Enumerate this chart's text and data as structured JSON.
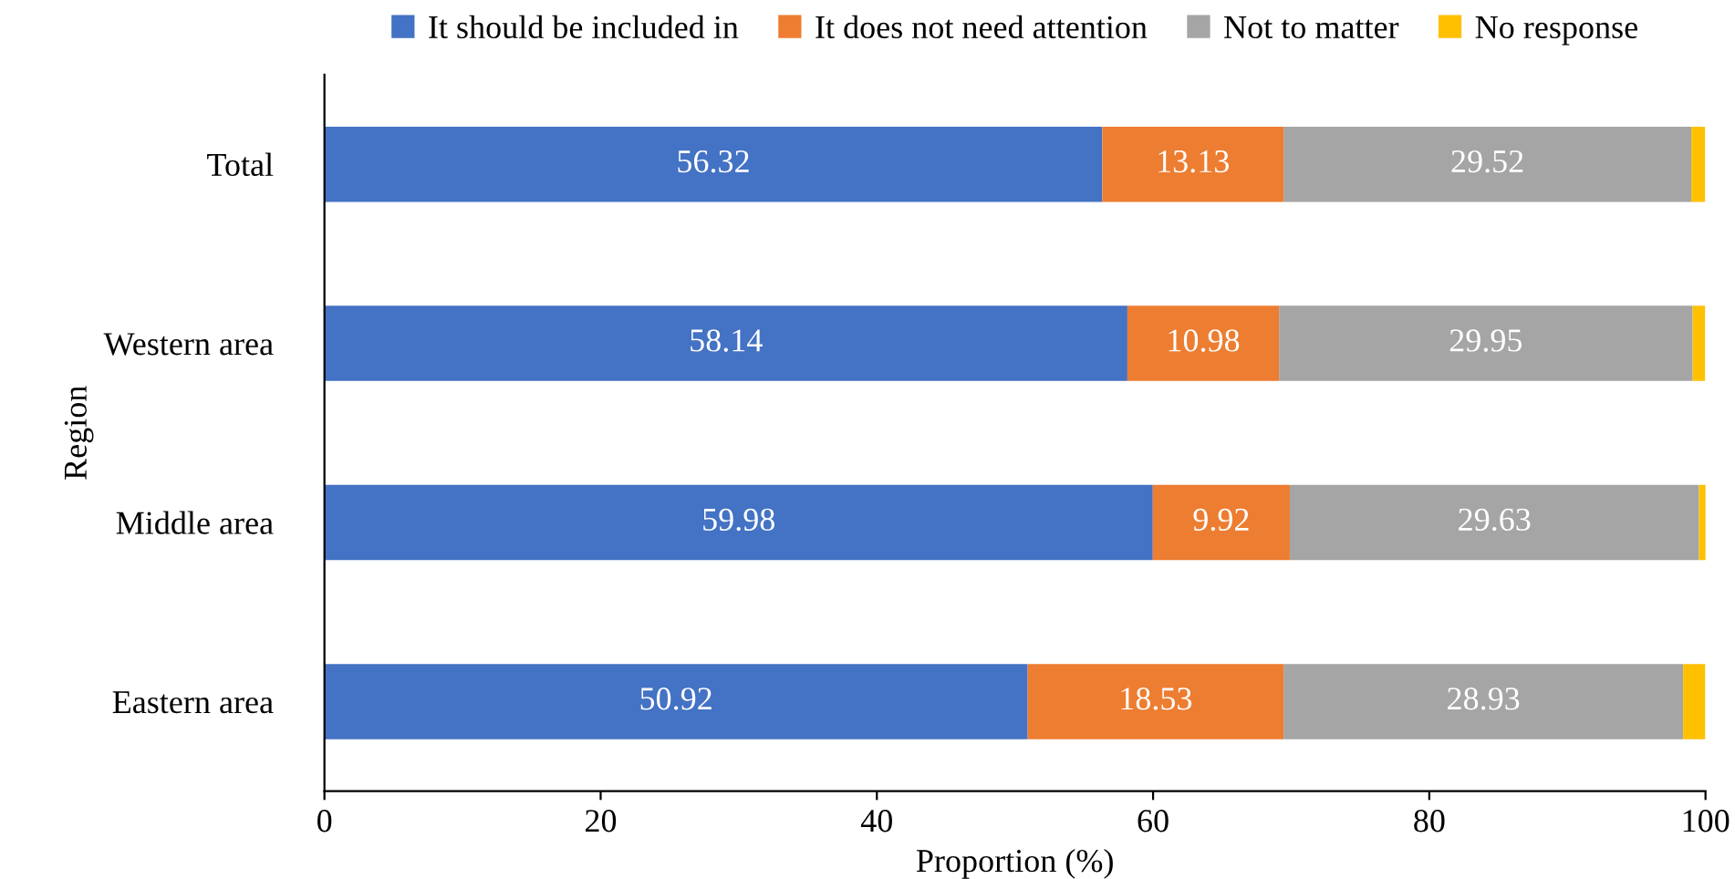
{
  "chart_data": {
    "type": "bar",
    "orientation": "horizontal",
    "stacked": true,
    "categories": [
      "Total",
      "Western area",
      "Middle area",
      "Eastern area"
    ],
    "xlabel": "Proportion (%)",
    "ylabel": "Region",
    "xlim": [
      0,
      100
    ],
    "xticks": [
      0,
      20,
      40,
      60,
      80,
      100
    ],
    "grid": false,
    "legend": "top",
    "series": [
      {
        "name": "It should be included in",
        "color": "#4472c4",
        "values": [
          56.32,
          58.14,
          59.98,
          50.92
        ],
        "value_labels": [
          "56.32",
          "58.14",
          "59.98",
          "50.92"
        ]
      },
      {
        "name": "It does not need attention",
        "color": "#ed7d31",
        "values": [
          13.13,
          10.98,
          9.92,
          18.53
        ],
        "value_labels": [
          "13.13",
          "10.98",
          "9.92",
          "18.53"
        ]
      },
      {
        "name": "Not to matter",
        "color": "#a5a5a5",
        "values": [
          29.52,
          29.95,
          29.63,
          28.93
        ],
        "value_labels": [
          "29.52",
          "29.95",
          "29.63",
          "28.93"
        ]
      },
      {
        "name": "No response",
        "color": "#ffc000",
        "values": [
          1.0,
          0.9,
          0.5,
          1.6
        ],
        "value_labels": [
          null,
          null,
          null,
          null
        ]
      }
    ]
  }
}
